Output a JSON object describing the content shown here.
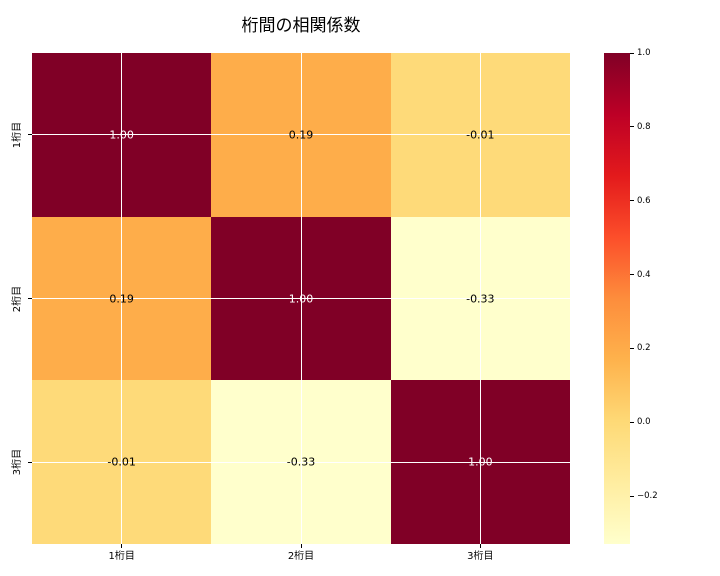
{
  "chart_data": {
    "type": "heatmap",
    "title": "桁間の相関係数",
    "x_categories": [
      "1桁目",
      "2桁目",
      "3桁目"
    ],
    "y_categories": [
      "1桁目",
      "2桁目",
      "3桁目"
    ],
    "matrix": [
      [
        1.0,
        0.19,
        -0.01
      ],
      [
        0.19,
        1.0,
        -0.33
      ],
      [
        -0.01,
        -0.33,
        1.0
      ]
    ],
    "annotations": [
      [
        "1.00",
        "0.19",
        "-0.01"
      ],
      [
        "0.19",
        "1.00",
        "-0.33"
      ],
      [
        "-0.01",
        "-0.33",
        "1.00"
      ]
    ],
    "cell_colors": [
      [
        "#800026",
        "#fead4a",
        "#feda79"
      ],
      [
        "#fead4a",
        "#800026",
        "#ffffcc"
      ],
      [
        "#feda79",
        "#ffffcc",
        "#800026"
      ]
    ],
    "cell_text_colors": [
      [
        "#ffffff",
        "#000000",
        "#000000"
      ],
      [
        "#000000",
        "#ffffff",
        "#000000"
      ],
      [
        "#000000",
        "#000000",
        "#ffffff"
      ]
    ],
    "vmin": -0.33,
    "vmax": 1.0,
    "colormap": {
      "name": "YlOrRd",
      "stops_low_to_high": [
        "#ffffcc",
        "#ffeda0",
        "#fed976",
        "#feb24c",
        "#fd8d3c",
        "#fc4e2a",
        "#e31a1c",
        "#bd0026",
        "#800026"
      ]
    },
    "colorbar": {
      "tick_labels": [
        "1.0",
        "0.8",
        "0.6",
        "0.4",
        "0.2",
        "0.0",
        "−0.2"
      ],
      "tick_values": [
        1.0,
        0.8,
        0.6,
        0.4,
        0.2,
        0.0,
        -0.2
      ]
    },
    "grid": true,
    "grid_color": "#ffffff",
    "background": "#ffffff"
  }
}
